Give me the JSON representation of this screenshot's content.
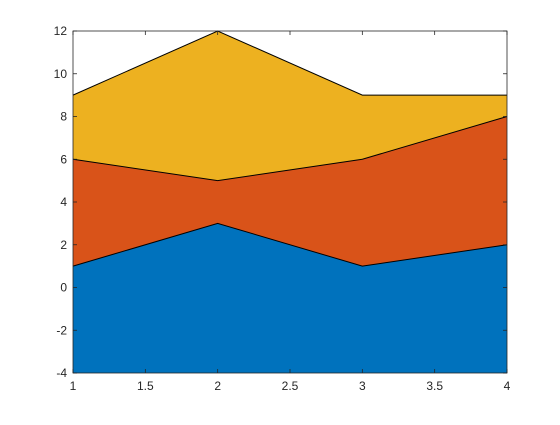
{
  "chart_data": {
    "type": "area",
    "stacked": true,
    "title": "",
    "xlabel": "",
    "ylabel": "",
    "x": [
      1,
      2,
      3,
      4
    ],
    "xlim": [
      1,
      4
    ],
    "ylim": [
      -4,
      12
    ],
    "xticks": [
      "1",
      "1.5",
      "2",
      "2.5",
      "3",
      "3.5",
      "4"
    ],
    "yticks": [
      "-4",
      "-2",
      "0",
      "2",
      "4",
      "6",
      "8",
      "10",
      "12"
    ],
    "series": [
      {
        "values": [
          1,
          3,
          1,
          2
        ],
        "color": "#0072BD"
      },
      {
        "values": [
          5,
          2,
          5,
          6
        ],
        "color": "#D95319"
      },
      {
        "values": [
          3,
          7,
          3,
          1
        ],
        "color": "#EDB120"
      }
    ],
    "grid": false,
    "legend": "none"
  }
}
